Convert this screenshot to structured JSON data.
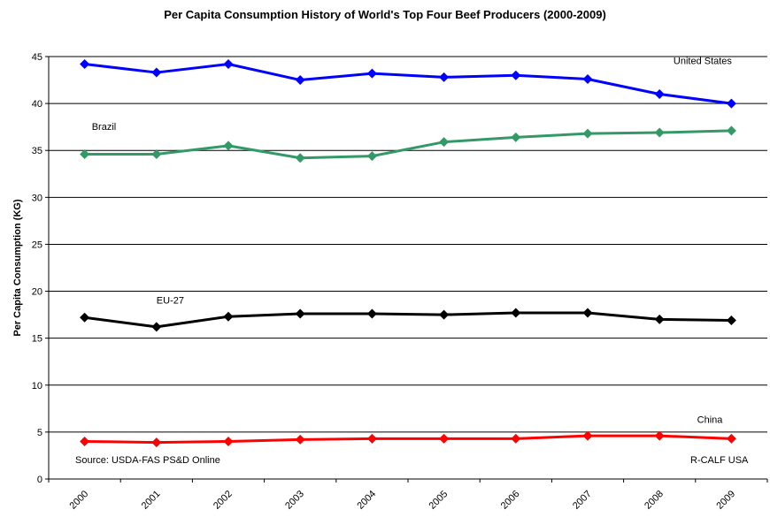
{
  "chart_data": {
    "type": "line",
    "title": "Per Capita Consumption History of World's Top Four Beef Producers (2000-2009)",
    "xlabel": "",
    "ylabel": "Per Capita Consumption (KG)",
    "ylim": [
      0,
      45
    ],
    "y_ticks": [
      "0",
      "5",
      "10",
      "15",
      "20",
      "25",
      "30",
      "35",
      "40",
      "45"
    ],
    "categories": [
      "2000",
      "2001",
      "2002",
      "2003",
      "2004",
      "2005",
      "2006",
      "2007",
      "2008",
      "2009"
    ],
    "grid": "horizontal",
    "series": [
      {
        "name": "United States",
        "color": "#0000ff",
        "values": [
          44.2,
          43.3,
          44.2,
          42.5,
          43.2,
          42.8,
          43.0,
          42.6,
          41.0,
          40.0
        ]
      },
      {
        "name": "Brazil",
        "color": "#339966",
        "values": [
          34.6,
          34.6,
          35.5,
          34.2,
          34.4,
          35.9,
          36.4,
          36.8,
          36.9,
          37.1
        ]
      },
      {
        "name": "EU-27",
        "color": "#000000",
        "values": [
          17.2,
          16.2,
          17.3,
          17.6,
          17.6,
          17.5,
          17.7,
          17.7,
          17.0,
          16.9
        ]
      },
      {
        "name": "China",
        "color": "#ff0000",
        "values": [
          4.0,
          3.9,
          4.0,
          4.2,
          4.3,
          4.3,
          4.3,
          4.6,
          4.6,
          4.3
        ]
      }
    ]
  },
  "notes": {
    "source": "Source: USDA-FAS PS&D Online",
    "credit": "R-CALF USA"
  }
}
